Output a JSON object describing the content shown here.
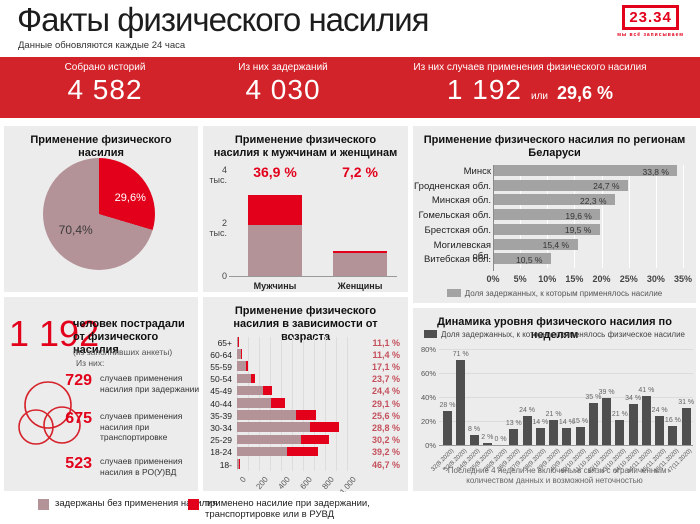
{
  "header": {
    "title": "Факты физического насилия",
    "subtitle": "Данные обновляются каждые 24 часа",
    "logo": {
      "text": "23.34",
      "tagline": "мы всё записываем"
    }
  },
  "summary": {
    "stats": [
      {
        "label": "Собрано историй",
        "value": "4 582"
      },
      {
        "label": "Из них задержаний",
        "value": "4 030"
      },
      {
        "label": "Из них случаев применения физического насилия",
        "value": "1 192",
        "conj": "или",
        "pct": "29,6 %"
      }
    ]
  },
  "victims": {
    "big_value": "1 192",
    "big_label": "человек пострадали от физического насилия",
    "note1": "(из заполнивших анкеты)",
    "note2": "Из них:",
    "items": [
      {
        "value": "729",
        "label": "случаев применения насилия при задержании"
      },
      {
        "value": "675",
        "label": "случаев применения насилия при транспортировке"
      },
      {
        "value": "523",
        "label": "случаев применения насилия в РО(У)ВД"
      }
    ]
  },
  "bottom_legend": [
    {
      "color": "#b39298",
      "label": "задержаны без применения насилия"
    },
    {
      "color": "#e2001a",
      "label": "применено насилие при задержании, транспортировке или в РУВД"
    }
  ],
  "colors": {
    "banner_red": "#d2232a",
    "accent_red": "#e2001a",
    "mauve": "#b39298",
    "region_grey": "#a3a3a3",
    "weekly_dark": "#4f4f4f",
    "panel_bg": "#ececec"
  },
  "chart_data": [
    {
      "id": "pie",
      "type": "pie",
      "title": "Применение физического насилия",
      "slices": [
        {
          "label": "29,6%",
          "value": 29.6,
          "color": "#e2001a"
        },
        {
          "label": "70,4%",
          "value": 70.4,
          "color": "#b39298"
        }
      ]
    },
    {
      "id": "gender",
      "type": "bar",
      "title": "Применение физического насилия к мужчинам и женщинам",
      "categories": [
        "Мужчины",
        "Женщины"
      ],
      "series": [
        {
          "name": "задержаны без применения насилия",
          "color": "#b39298",
          "values": [
            1.92,
            0.88
          ]
        },
        {
          "name": "применено насилие",
          "color": "#e2001a",
          "values": [
            1.13,
            0.07
          ]
        }
      ],
      "pct_labels": [
        "36,9 %",
        "7,2 %"
      ],
      "yticks": [
        {
          "label": "4 тыс.",
          "value": 4
        },
        {
          "label": "2 тыс.",
          "value": 2
        },
        {
          "label": "0",
          "value": 0
        }
      ],
      "ylim": [
        0,
        4
      ]
    },
    {
      "id": "regions",
      "type": "bar",
      "title": "Применение физического насилия по регионам Беларуси",
      "categories": [
        "Минск",
        "Гродненская обл.",
        "Минская обл.",
        "Гомельская обл.",
        "Брестская обл.",
        "Могилевская обл.",
        "Витебская обл."
      ],
      "values": [
        33.8,
        24.7,
        22.3,
        19.6,
        19.5,
        15.4,
        10.5
      ],
      "value_labels": [
        "33,8 %",
        "24,7 %",
        "22,3 %",
        "19,6 %",
        "19,5 %",
        "15,4 %",
        "10,5 %"
      ],
      "xticks": [
        "0%",
        "5%",
        "10%",
        "15%",
        "20%",
        "25%",
        "30%",
        "35%"
      ],
      "xlim": [
        0,
        35
      ],
      "legend": "Доля задержанных, к которым применялось насилие"
    },
    {
      "id": "age",
      "type": "bar",
      "title": "Применение физического насилия в зависимости от возраста",
      "categories": [
        "65+",
        "60-64",
        "55-59",
        "50-54",
        "45-49",
        "40-44",
        "35-39",
        "30-34",
        "25-29",
        "18-24",
        "18-"
      ],
      "series": [
        {
          "name": "задержаны без применения насилия",
          "color": "#b39298",
          "values": [
            13,
            35,
            80,
            125,
            240,
            310,
            535,
            660,
            585,
            450,
            16
          ]
        },
        {
          "name": "применено насилие",
          "color": "#e2001a",
          "values": [
            2,
            5,
            16,
            39,
            78,
            127,
            184,
            266,
            253,
            290,
            14
          ]
        }
      ],
      "pct_labels": [
        "11,1 %",
        "11,4 %",
        "17,1 %",
        "23,7 %",
        "24,4 %",
        "29,1 %",
        "25,6 %",
        "28,8 %",
        "30,2 %",
        "39,2 %",
        "46,7 %"
      ],
      "xticks": [
        "0",
        "200",
        "400",
        "600",
        "800",
        "1 000"
      ],
      "xlim": [
        0,
        1000
      ]
    },
    {
      "id": "weekly",
      "type": "bar",
      "title": "Динамика уровня физического насилия по неделям",
      "legend": "Доля задержанных, к которым применялось физическое насилие",
      "categories": [
        "32(8.2020)",
        "33(8.2020)",
        "34(8.2020)",
        "35(8.2020)",
        "36(8.2020)",
        "36(9.2020)",
        "37(9.2020)",
        "38(9.2020)",
        "39(9.2020)",
        "40(9.2020)",
        "40(10.2020)",
        "41(10.2020)",
        "42(10.2020)",
        "43(10.2020)",
        "44(10.2020)",
        "44(11.2020)",
        "45(11.2020)",
        "46(11.2020)",
        "47(11.2020)"
      ],
      "values": [
        28,
        71,
        8,
        2,
        0,
        13,
        24,
        14,
        21,
        14,
        15,
        35,
        39,
        21,
        34,
        41,
        24,
        16,
        31
      ],
      "value_labels": [
        "28 %",
        "71 %",
        "8 %",
        "2 %",
        "0 %",
        "13 %",
        "24 %",
        "14 %",
        "21 %",
        "14 %",
        "15 %",
        "35 %",
        "39 %",
        "21 %",
        "34 %",
        "41 %",
        "24 %",
        "16 %",
        "31 %"
      ],
      "yticks": [
        {
          "label": "0%",
          "value": 0
        },
        {
          "label": "20%",
          "value": 20
        },
        {
          "label": "40%",
          "value": 40
        },
        {
          "label": "60%",
          "value": 60
        },
        {
          "label": "80%",
          "value": 80
        }
      ],
      "ylim": [
        0,
        80
      ],
      "footnote": "* Последние 4 недели не включены в связи с ограниченным количеством данных и возможной неточностью"
    }
  ]
}
